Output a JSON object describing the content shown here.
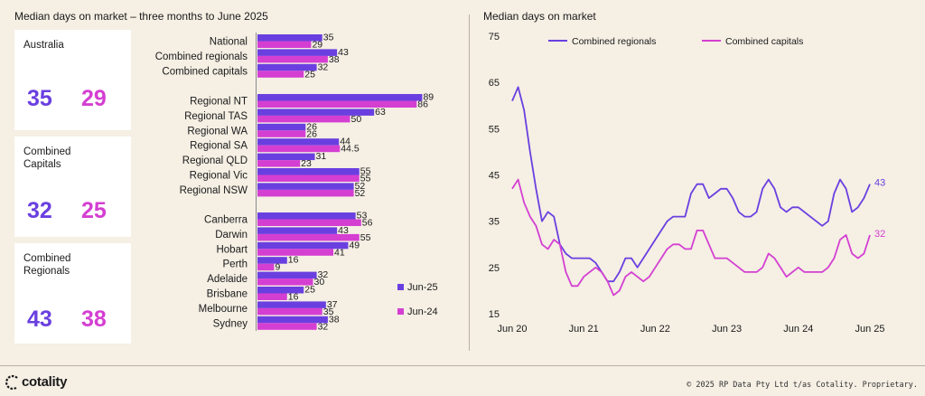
{
  "colors": {
    "jun25": "#6a3fe0",
    "jun24": "#d43fd2",
    "background": "#f5efe4",
    "card": "#ffffff"
  },
  "left_title": "Median days on market – three months to June 2025",
  "right_title": "Median days on market",
  "cards": [
    {
      "label": "Australia",
      "v1": "35",
      "v2": "29"
    },
    {
      "label": "Combined\nCapitals",
      "v1": "32",
      "v2": "25"
    },
    {
      "label": "Combined\nRegionals",
      "v1": "43",
      "v2": "38"
    }
  ],
  "footer": {
    "brand": "cotality",
    "copyright": "© 2025 RP Data Pty Ltd t/as Cotality. Proprietary."
  },
  "chart_data": [
    {
      "type": "bar",
      "orientation": "horizontal",
      "legend": [
        "Jun-25",
        "Jun-24"
      ],
      "groups": [
        {
          "categories": [
            "National",
            "Combined regionals",
            "Combined capitals"
          ],
          "jun25": [
            35,
            43,
            32
          ],
          "jun24": [
            29,
            38,
            25
          ],
          "jun25_labels": [
            "35",
            "43",
            "32"
          ],
          "jun24_labels": [
            "29",
            "38",
            "25"
          ]
        },
        {
          "categories": [
            "Regional NT",
            "Regional TAS",
            "Regional WA",
            "Regional SA",
            "Regional QLD",
            "Regional Vic",
            "Regional NSW"
          ],
          "jun25": [
            89,
            63,
            26,
            44,
            31,
            55,
            52
          ],
          "jun24": [
            86,
            50,
            26,
            44.5,
            23,
            55,
            52
          ],
          "jun25_labels": [
            "89",
            "63",
            "26",
            "44",
            "31",
            "55",
            "52"
          ],
          "jun24_labels": [
            "86",
            "50",
            "26",
            "44.5",
            "23",
            "55",
            "52"
          ]
        },
        {
          "categories": [
            "Canberra",
            "Darwin",
            "Hobart",
            "Perth",
            "Adelaide",
            "Brisbane",
            "Melbourne",
            "Sydney"
          ],
          "jun25": [
            53,
            43,
            49,
            16,
            32,
            25,
            37,
            38
          ],
          "jun24": [
            56,
            55,
            41,
            9,
            30,
            16,
            35,
            32
          ],
          "jun25_labels": [
            "53",
            "43",
            "49",
            "16",
            "32",
            "25",
            "37",
            "38"
          ],
          "jun24_labels": [
            "56",
            "55",
            "41",
            "9",
            "30",
            "16",
            "35",
            "32"
          ]
        }
      ]
    },
    {
      "type": "line",
      "title": "Median days on market",
      "ylim": [
        15,
        75
      ],
      "yticks": [
        "75",
        "65",
        "55",
        "45",
        "35",
        "25",
        "15"
      ],
      "ytick_values": [
        75,
        65,
        55,
        45,
        35,
        25,
        15
      ],
      "xticks": [
        "Jun 20",
        "Jun 21",
        "Jun 22",
        "Jun 23",
        "Jun 24",
        "Jun 25"
      ],
      "xtick_months": [
        0,
        12,
        24,
        36,
        48,
        60
      ],
      "x_start": "Jun 20",
      "x_end": "Jun 25",
      "series": [
        {
          "name": "Combined regionals",
          "color": "#6a3fe0",
          "end_label": "43",
          "values": [
            61,
            64,
            59,
            50,
            42,
            35,
            37,
            36,
            30,
            28,
            27,
            27,
            27,
            27,
            26,
            24,
            22,
            22,
            24,
            27,
            27,
            25,
            27,
            29,
            31,
            33,
            35,
            36,
            36,
            36,
            41,
            43,
            43,
            40,
            41,
            42,
            42,
            40,
            37,
            36,
            36,
            37,
            42,
            44,
            42,
            38,
            37,
            38,
            38,
            37,
            36,
            35,
            34,
            35,
            41,
            44,
            42,
            37,
            38,
            40,
            43
          ]
        },
        {
          "name": "Combined capitals",
          "color": "#d43fd2",
          "end_label": "32",
          "values": [
            42,
            44,
            39,
            36,
            34,
            30,
            29,
            31,
            30,
            24,
            21,
            21,
            23,
            24,
            25,
            24,
            22,
            19,
            20,
            23,
            24,
            23,
            22,
            23,
            25,
            27,
            29,
            30,
            30,
            29,
            29,
            33,
            33,
            30,
            27,
            27,
            27,
            26,
            25,
            24,
            24,
            24,
            25,
            28,
            27,
            25,
            23,
            24,
            25,
            24,
            24,
            24,
            24,
            25,
            27,
            31,
            32,
            28,
            27,
            28,
            32
          ]
        }
      ]
    }
  ]
}
